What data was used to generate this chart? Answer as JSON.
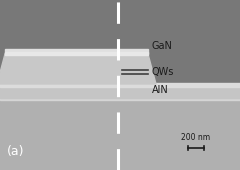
{
  "fig_w": 2.4,
  "fig_h": 1.7,
  "dpi": 100,
  "bg_dark": "#787878",
  "bg_light": "#b0b0b0",
  "substrate_color": "#c0c0c0",
  "ridge_body_color": "#c8c8c8",
  "ridge_bright": "#e0e0e0",
  "qw_line_color": "#404040",
  "dashed_color": "white",
  "label_color": "#1a1a1a",
  "panel_color": "white",
  "scale_color": "#1a1a1a",
  "label_gan": "GaN",
  "label_qws": "QWs",
  "label_aln": "AlN",
  "label_panel": "(a)",
  "label_scale": "200 nm"
}
